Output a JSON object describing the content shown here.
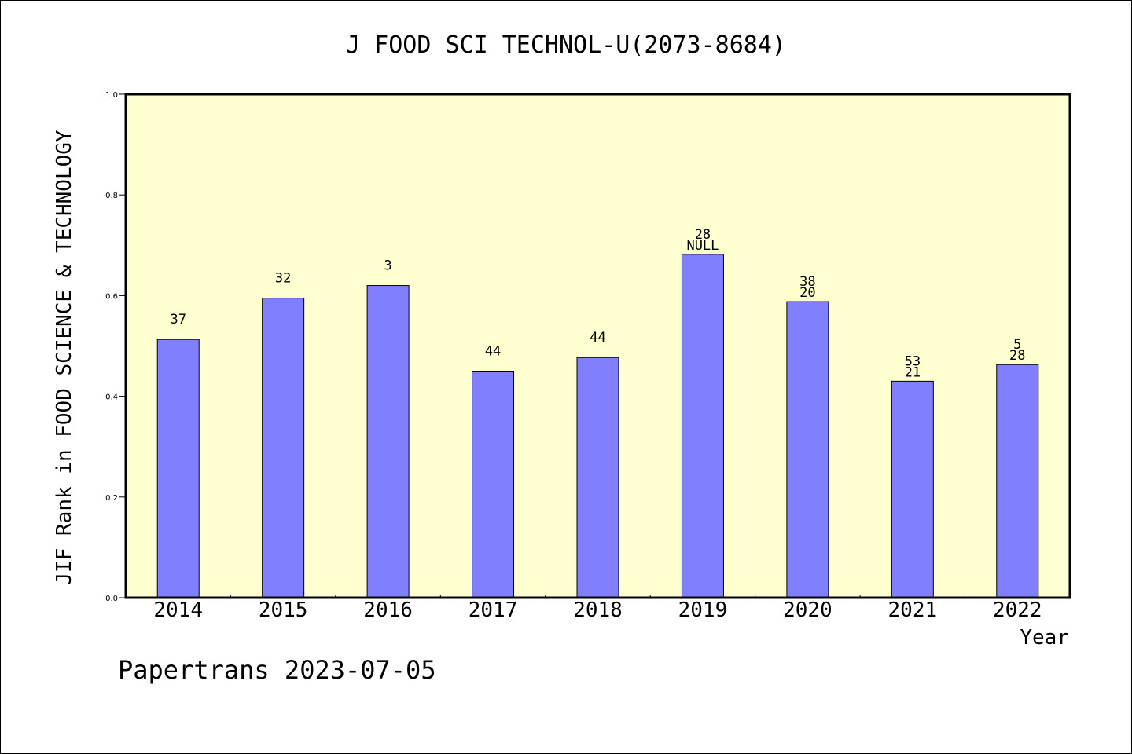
{
  "chart_data": {
    "type": "bar",
    "title": "J FOOD SCI TECHNOL-U(2073-8684)",
    "ylabel": "JIF Rank in FOOD SCIENCE & TECHNOLOGY",
    "xlabel": "Year",
    "ylim": [
      0,
      1.0
    ],
    "yticks": [
      "0.0",
      "0.2",
      "0.4",
      "0.6",
      "0.8",
      "1.0"
    ],
    "categories": [
      "2014",
      "2015",
      "2016",
      "2017",
      "2018",
      "2019",
      "2020",
      "2021",
      "2022"
    ],
    "values": [
      0.513,
      0.595,
      0.62,
      0.45,
      0.477,
      0.682,
      0.588,
      0.43,
      0.463
    ],
    "bar_labels": [
      [
        "37"
      ],
      [
        "32"
      ],
      [
        "3"
      ],
      [
        "44"
      ],
      [
        "44"
      ],
      [
        "28",
        "NULL"
      ],
      [
        "38",
        "20"
      ],
      [
        "53",
        "21"
      ],
      [
        "5",
        "28"
      ]
    ],
    "grid": false,
    "legend": "none",
    "colors": {
      "bar": "#8080ff",
      "plot_bg": "#ffffd0",
      "axis": "#000000"
    }
  },
  "footer": {
    "text": "Papertrans 2023-07-05"
  }
}
